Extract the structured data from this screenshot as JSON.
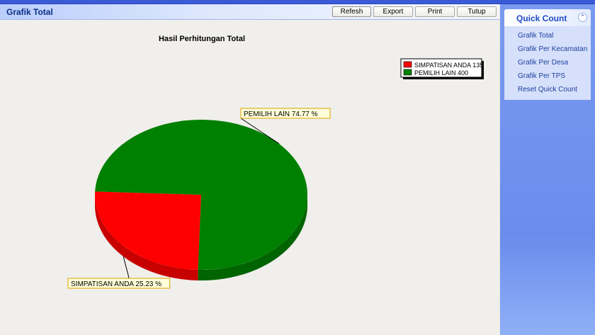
{
  "window": {
    "title": "Grafik Total"
  },
  "toolbar": {
    "refresh": "Refesh",
    "export": "Export",
    "print": "Print",
    "tutup": "Tutup"
  },
  "sidebar": {
    "title": "Quick Count",
    "items": [
      {
        "label": "Grafik Total"
      },
      {
        "label": "Grafik Per Kecamatan"
      },
      {
        "label": "Grafik Per Desa"
      },
      {
        "label": "Grafik Per TPS"
      },
      {
        "label": "Reset Quick Count"
      }
    ]
  },
  "chart_data": {
    "type": "pie",
    "title": "Hasil Perhitungan Total",
    "slices": [
      {
        "name": "SIMPATISAN ANDA",
        "value": 135,
        "percent": 25.23,
        "color": "#ff0000",
        "legend": "SIMPATISAN ANDA 135",
        "label": "SIMPATISAN ANDA 25.23 %"
      },
      {
        "name": "PEMILIH LAIN",
        "value": 400,
        "percent": 74.77,
        "color": "#008000",
        "legend": "PEMILIH LAIN 400",
        "label": "PEMILIH LAIN 74.77 %"
      }
    ],
    "legend_position": "top-right"
  }
}
